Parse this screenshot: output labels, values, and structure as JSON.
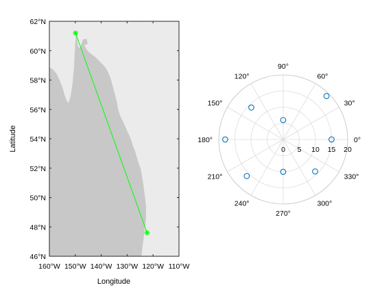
{
  "chart_data": [
    {
      "type": "map",
      "xlabel": "Longitude",
      "ylabel": "Latitude",
      "xlim": [
        -160,
        -110
      ],
      "ylim": [
        46,
        62
      ],
      "xtick_labels": [
        "160°W",
        "150°W",
        "140°W",
        "130°W",
        "120°W",
        "110°W"
      ],
      "ytick_labels": [
        "46°N",
        "48°N",
        "50°N",
        "52°N",
        "54°N",
        "56°N",
        "58°N",
        "60°N",
        "62°N"
      ],
      "grid": false,
      "colors": {
        "background": "#ebebeb",
        "land": "#c8c8c8",
        "line": "#00ff00",
        "marker": "#00ff00"
      },
      "route": {
        "start": {
          "lon": -149.9,
          "lat": 61.2
        },
        "end": {
          "lon": -122.3,
          "lat": 47.6
        },
        "marker": "asterisk"
      }
    },
    {
      "type": "polar-scatter",
      "theta_tick_labels": [
        "0°",
        "30°",
        "60°",
        "90°",
        "120°",
        "150°",
        "180°",
        "210°",
        "240°",
        "270°",
        "300°",
        "330°"
      ],
      "r_tick_labels": [
        "0",
        "5",
        "10",
        "15",
        "20"
      ],
      "rlim": [
        0,
        20
      ],
      "grid": true,
      "marker": "circle-open",
      "colors": {
        "marker": "#0072bd",
        "grid": "#dcdcdc"
      },
      "points": [
        {
          "theta": 0,
          "r": 15
        },
        {
          "theta": 45,
          "r": 19
        },
        {
          "theta": 90,
          "r": 6
        },
        {
          "theta": 135,
          "r": 14
        },
        {
          "theta": 180,
          "r": 18
        },
        {
          "theta": 225,
          "r": 16
        },
        {
          "theta": 270,
          "r": 10
        },
        {
          "theta": 315,
          "r": 14
        }
      ]
    }
  ]
}
